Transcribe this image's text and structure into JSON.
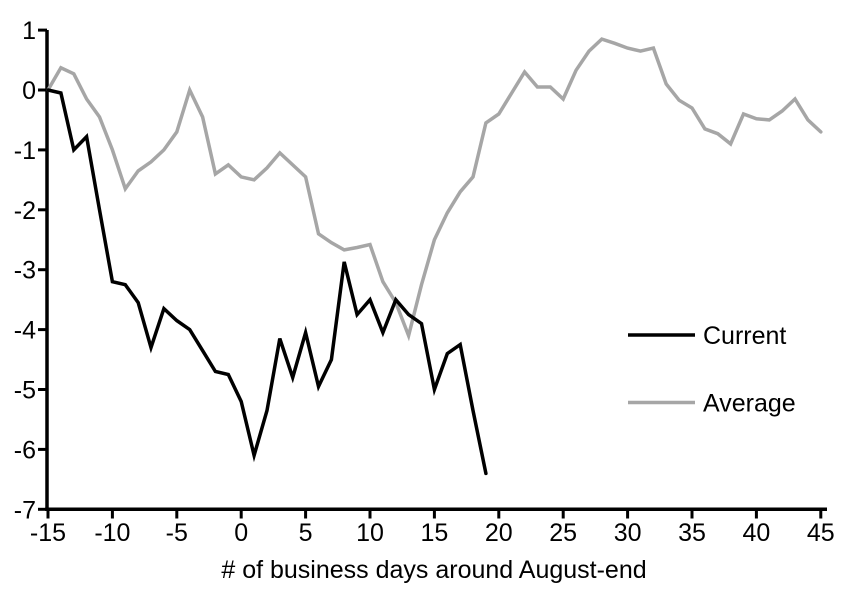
{
  "chart_data": {
    "type": "line",
    "title": "",
    "xlabel": "# of business days around August-end",
    "ylabel": "",
    "xlim": [
      -15,
      45
    ],
    "ylim": [
      -7,
      1
    ],
    "x_ticks": [
      -15,
      -10,
      -5,
      0,
      5,
      10,
      15,
      20,
      25,
      30,
      35,
      40,
      45
    ],
    "y_ticks": [
      1,
      0,
      -1,
      -2,
      -3,
      -4,
      -5,
      -6,
      -7
    ],
    "grid": false,
    "legend_position": "middle-right",
    "series": [
      {
        "name": "Current",
        "color": "#000000",
        "x": [
          -15,
          -14,
          -13,
          -12,
          -11,
          -10,
          -9,
          -8,
          -7,
          -6,
          -5,
          -4,
          -3,
          -2,
          -1,
          0,
          1,
          2,
          3,
          4,
          5,
          6,
          7,
          8,
          9,
          10,
          11,
          12,
          13,
          14,
          15,
          16,
          17,
          18,
          19
        ],
        "values": [
          0.0,
          -0.05,
          -1.0,
          -0.78,
          -2.0,
          -3.2,
          -3.25,
          -3.55,
          -4.3,
          -3.65,
          -3.85,
          -4.0,
          -4.35,
          -4.7,
          -4.75,
          -5.2,
          -6.1,
          -5.35,
          -4.15,
          -4.8,
          -4.05,
          -4.95,
          -4.5,
          -2.87,
          -3.75,
          -3.5,
          -4.05,
          -3.5,
          -3.75,
          -3.9,
          -5.0,
          -4.4,
          -4.25,
          -5.35,
          -6.4
        ]
      },
      {
        "name": "Average",
        "color": "#a6a6a6",
        "x": [
          -15,
          -14,
          -13,
          -12,
          -11,
          -10,
          -9,
          -8,
          -7,
          -6,
          -5,
          -4,
          -3,
          -2,
          -1,
          0,
          1,
          2,
          3,
          4,
          5,
          6,
          7,
          8,
          9,
          10,
          11,
          12,
          13,
          14,
          15,
          16,
          17,
          18,
          19,
          20,
          21,
          22,
          23,
          24,
          25,
          26,
          27,
          28,
          29,
          30,
          31,
          32,
          33,
          34,
          35,
          36,
          37,
          38,
          39,
          40,
          41,
          42,
          43,
          44,
          45
        ],
        "values": [
          0.0,
          0.37,
          0.27,
          -0.15,
          -0.45,
          -1.0,
          -1.65,
          -1.35,
          -1.2,
          -1.0,
          -0.7,
          0.0,
          -0.45,
          -1.4,
          -1.25,
          -1.45,
          -1.5,
          -1.3,
          -1.05,
          -1.25,
          -1.45,
          -2.4,
          -2.55,
          -2.67,
          -2.63,
          -2.58,
          -3.2,
          -3.55,
          -4.1,
          -3.25,
          -2.5,
          -2.05,
          -1.7,
          -1.45,
          -0.55,
          -0.4,
          -0.05,
          0.3,
          0.05,
          0.05,
          -0.15,
          0.33,
          0.65,
          0.85,
          0.78,
          0.7,
          0.65,
          0.7,
          0.1,
          -0.17,
          -0.3,
          -0.65,
          -0.73,
          -0.9,
          -0.4,
          -0.48,
          -0.5,
          -0.35,
          -0.15,
          -0.5,
          -0.7
        ]
      }
    ]
  },
  "legend": {
    "items": [
      {
        "label": "Current",
        "color": "#000000"
      },
      {
        "label": "Average",
        "color": "#a6a6a6"
      }
    ]
  },
  "colors": {
    "background": "#ffffff",
    "axis": "#000000",
    "current_line": "#000000",
    "average_line": "#a6a6a6"
  }
}
